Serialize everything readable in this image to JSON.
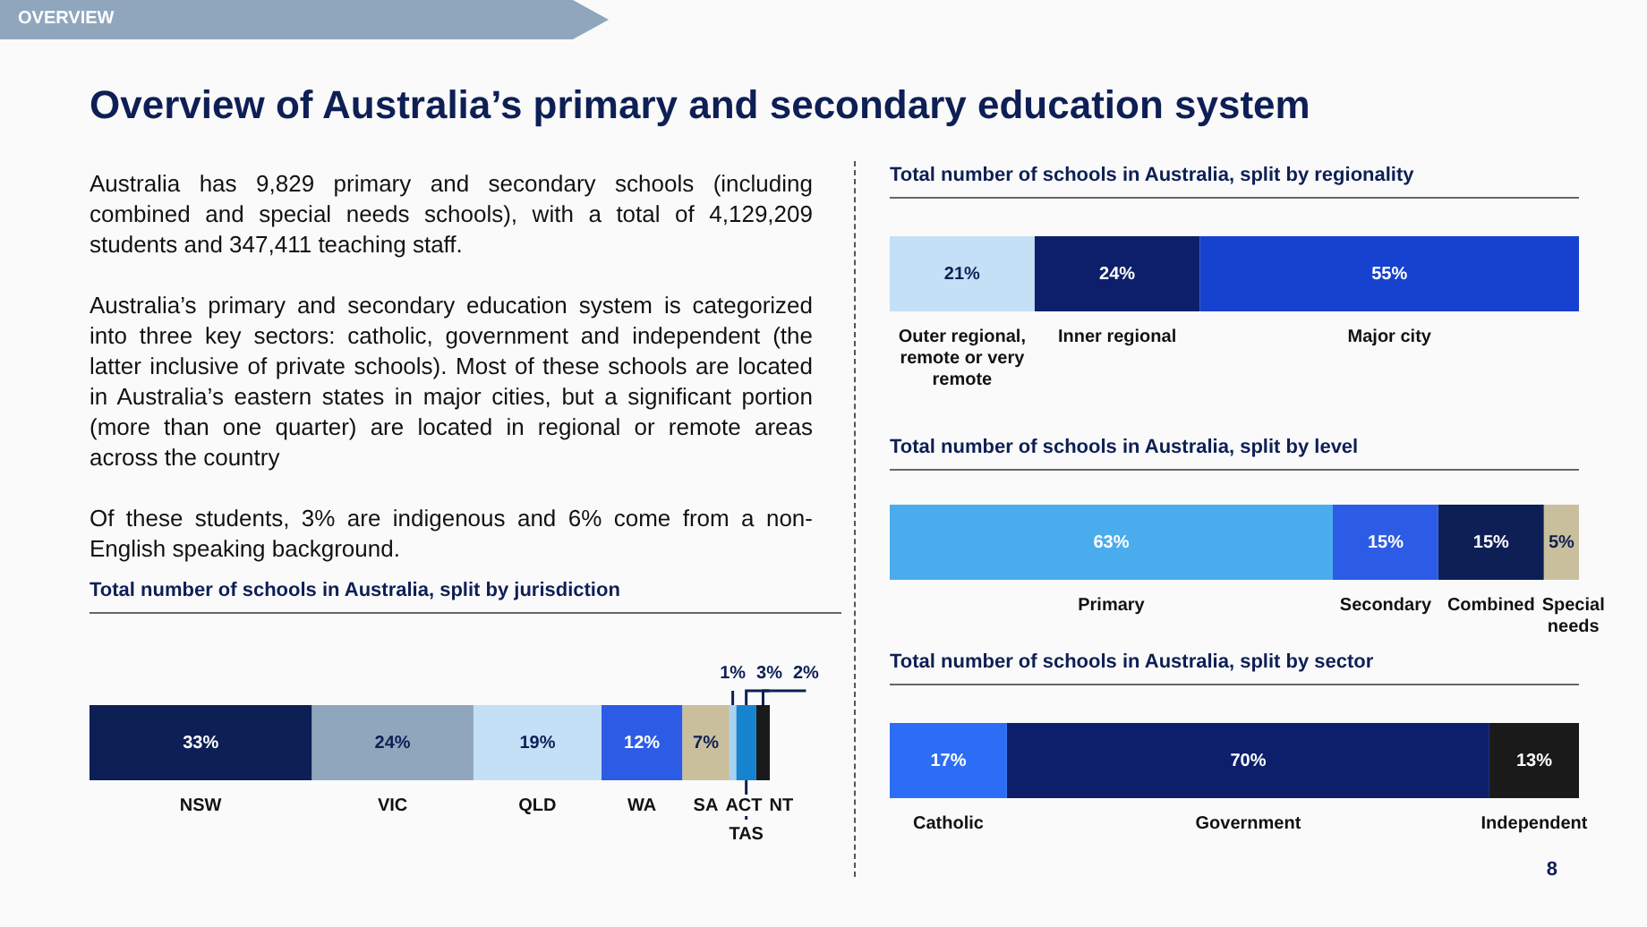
{
  "chart_data": [
    {
      "type": "other",
      "title": "Overview of Australia’s primary and secondary education system",
      "annotations": [
        "OVERVIEW",
        "Australia has 9,829 primary and secondary schools (including combined and special needs schools), with a total of 4,129,209 students and 347,411 teaching staff.",
        "Australia’s primary and secondary education system is categorized into three key sectors: catholic, government and independent (the latter inclusive of private schools). Most of these schools are located in Australia’s eastern states in major cities, but a significant portion (more than one quarter) are located in regional or remote areas across the country",
        "Of these students, 3% are indigenous and 6% come from a non-English speaking background.",
        "8"
      ]
    },
    {
      "type": "bar",
      "orientation": "horizontal",
      "stacked": true,
      "title": "Total number of schools in Australia, split by jurisdiction",
      "categories": [
        null
      ],
      "tick_labels": false,
      "legend": false,
      "series": [
        {
          "name": "NSW",
          "color": "#0d1f55",
          "values": [
            33
          ],
          "value_labels": [
            "33%"
          ]
        },
        {
          "name": "VIC",
          "color": "#8fa6bd",
          "values": [
            24
          ],
          "value_labels": [
            "24%"
          ]
        },
        {
          "name": "QLD",
          "color": "#c3e0f6",
          "values": [
            19
          ],
          "value_labels": [
            "19%"
          ]
        },
        {
          "name": "WA",
          "color": "#2c5ce6",
          "values": [
            12
          ],
          "value_labels": [
            "12%"
          ]
        },
        {
          "name": "SA",
          "color": "#c9bf9d",
          "values": [
            7
          ],
          "value_labels": [
            "7%"
          ]
        },
        {
          "name": "ACT",
          "color": "#a9d2f0",
          "values": [
            1
          ],
          "value_labels": [
            "1%"
          ]
        },
        {
          "name": "TAS",
          "color": "#1583d0",
          "values": [
            3
          ],
          "value_labels": [
            "3%"
          ]
        },
        {
          "name": "NT",
          "color": "#1a1a1a",
          "values": [
            2
          ],
          "value_labels": [
            "2%"
          ]
        }
      ]
    },
    {
      "type": "bar",
      "orientation": "horizontal",
      "stacked": true,
      "title": "Total number of schools in Australia, split by regionality",
      "categories": [
        null
      ],
      "tick_labels": false,
      "legend": false,
      "series": [
        {
          "name": "Outer regional, remote or very remote",
          "color": "#c3e0f6",
          "values": [
            21
          ],
          "value_labels": [
            "21%"
          ]
        },
        {
          "name": "Inner regional",
          "color": "#0d1f6b",
          "values": [
            24
          ],
          "value_labels": [
            "24%"
          ]
        },
        {
          "name": "Major city",
          "color": "#1642cf",
          "values": [
            55
          ],
          "value_labels": [
            "55%"
          ]
        }
      ]
    },
    {
      "type": "bar",
      "orientation": "horizontal",
      "stacked": true,
      "title": "Total number of schools in Australia, split by level",
      "categories": [
        null
      ],
      "tick_labels": false,
      "legend": false,
      "series": [
        {
          "name": "Primary",
          "color": "#4aaced",
          "values": [
            63
          ],
          "value_labels": [
            "63%"
          ]
        },
        {
          "name": "Secondary",
          "color": "#2c5ce6",
          "values": [
            15
          ],
          "value_labels": [
            "15%"
          ]
        },
        {
          "name": "Combined",
          "color": "#0d1f55",
          "values": [
            15
          ],
          "value_labels": [
            "15%"
          ]
        },
        {
          "name": "Special needs",
          "color": "#c9bf9d",
          "values": [
            5
          ],
          "value_labels": [
            "5%"
          ]
        }
      ]
    },
    {
      "type": "bar",
      "orientation": "horizontal",
      "stacked": true,
      "title": "Total number of schools in Australia, split by sector",
      "categories": [
        null
      ],
      "tick_labels": false,
      "legend": false,
      "series": [
        {
          "name": "Catholic",
          "color": "#2b6ef5",
          "values": [
            17
          ],
          "value_labels": [
            "17%"
          ]
        },
        {
          "name": "Government",
          "color": "#0d1f6b",
          "values": [
            70
          ],
          "value_labels": [
            "70%"
          ]
        },
        {
          "name": "Independent",
          "color": "#1a1a1a",
          "values": [
            13
          ],
          "value_labels": [
            "13%"
          ]
        }
      ]
    }
  ]
}
